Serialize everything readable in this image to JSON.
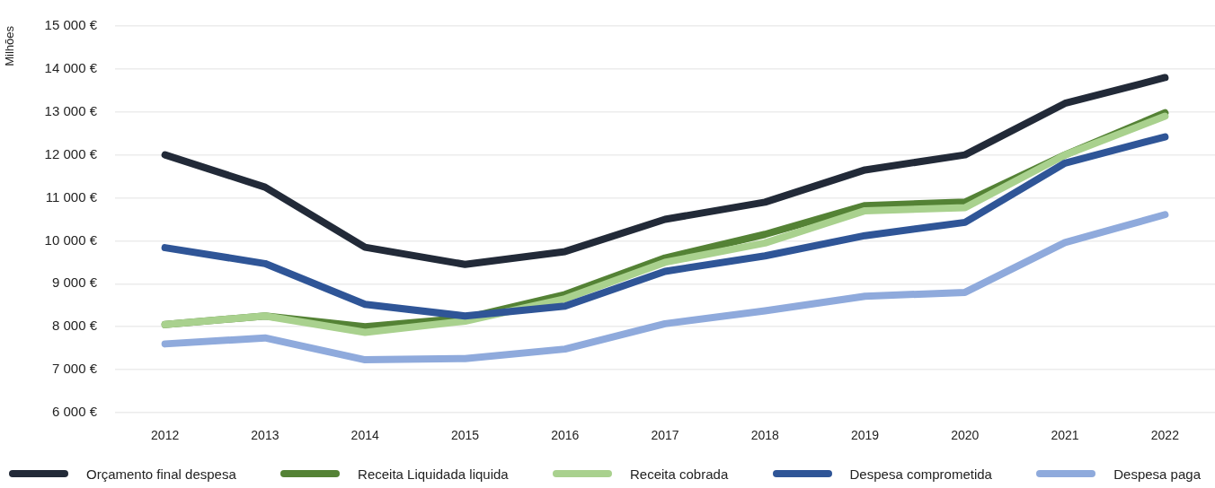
{
  "chart_data": {
    "type": "line",
    "ylabel": "Milhões",
    "categories": [
      "2012",
      "2013",
      "2014",
      "2015",
      "2016",
      "2017",
      "2018",
      "2019",
      "2020",
      "2021",
      "2022"
    ],
    "series": [
      {
        "name": "Orçamento final despesa",
        "color": "#222a38",
        "values": [
          12000,
          11250,
          9850,
          9450,
          9750,
          10500,
          10900,
          11650,
          12000,
          13200,
          13800
        ]
      },
      {
        "name": "Receita Liquidada liquida",
        "color": "#548235",
        "values": [
          8050,
          8250,
          8000,
          8200,
          8750,
          9600,
          10150,
          10820,
          10900,
          12000,
          12980
        ]
      },
      {
        "name": "Receita cobrada",
        "color": "#a9d18e",
        "values": [
          8050,
          8250,
          7870,
          8130,
          8650,
          9500,
          9950,
          10700,
          10770,
          12000,
          12900
        ]
      },
      {
        "name": "Despesa comprometida",
        "color": "#2f5597",
        "values": [
          9840,
          9470,
          8520,
          8250,
          8480,
          9290,
          9650,
          10120,
          10430,
          11810,
          12420
        ]
      },
      {
        "name": "Despesa paga",
        "color": "#8faadc",
        "values": [
          7600,
          7740,
          7230,
          7260,
          7480,
          8070,
          8370,
          8710,
          8800,
          9960,
          10610
        ]
      }
    ],
    "ylim": [
      6000,
      15000
    ],
    "yticks": [
      {
        "value": 6000,
        "label": "6 000 €"
      },
      {
        "value": 7000,
        "label": "7 000 €"
      },
      {
        "value": 8000,
        "label": "8 000 €"
      },
      {
        "value": 9000,
        "label": "9 000 €"
      },
      {
        "value": 10000,
        "label": "10 000 €"
      },
      {
        "value": 11000,
        "label": "11 000 €"
      },
      {
        "value": 12000,
        "label": "12 000 €"
      },
      {
        "value": 13000,
        "label": "13 000 €"
      },
      {
        "value": 14000,
        "label": "14 000 €"
      },
      {
        "value": 15000,
        "label": "15 000 €"
      }
    ],
    "grid": "y",
    "legend": "bottom",
    "marker": "none",
    "line_style": "solid"
  }
}
